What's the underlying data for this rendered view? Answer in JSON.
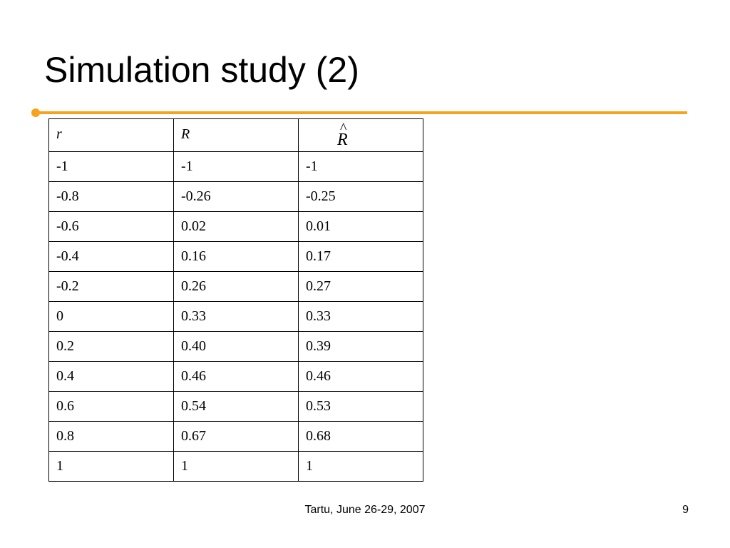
{
  "slide": {
    "title": "Simulation study (2)",
    "footer": "Tartu, June 26-29, 2007",
    "page_number": "9",
    "accent_color": "#f7a21b"
  },
  "table": {
    "headers": [
      "r",
      "R",
      "R"
    ],
    "header3_accent": "^",
    "rows": [
      [
        "-1",
        "-1",
        "-1"
      ],
      [
        "-0.8",
        "-0.26",
        "-0.25"
      ],
      [
        "-0.6",
        "0.02",
        "0.01"
      ],
      [
        "-0.4",
        "0.16",
        "0.17"
      ],
      [
        "-0.2",
        "0.26",
        "0.27"
      ],
      [
        "0",
        "0.33",
        "0.33"
      ],
      [
        "0.2",
        "0.40",
        "0.39"
      ],
      [
        "0.4",
        "0.46",
        "0.46"
      ],
      [
        "0.6",
        "0.54",
        "0.53"
      ],
      [
        "0.8",
        "0.67",
        "0.68"
      ],
      [
        "1",
        "1",
        "1"
      ]
    ]
  }
}
